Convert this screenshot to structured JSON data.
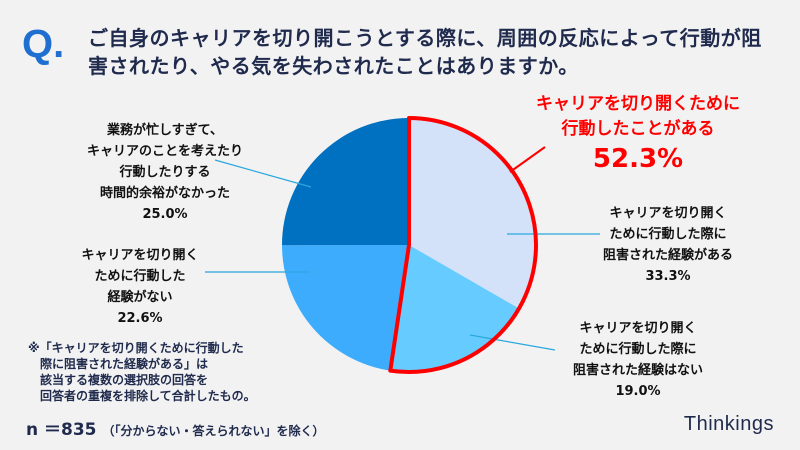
{
  "header": {
    "q_mark": "Q.",
    "question": "ご自身のキャリアを切り開こうとする際に、周囲の反応によって行動が阻害されたり、やる気を失わされたことはありますか。"
  },
  "chart_data": {
    "type": "pie",
    "start": "top",
    "direction": "clockwise",
    "slices": [
      {
        "label": "キャリアを切り開く\nために行動した際に\n阻害された経験がある",
        "value": 33.3,
        "value_label": "33.3%",
        "color": "#d3e2f8"
      },
      {
        "label": "キャリアを切り開く\nために行動した際に\n阻害された経験はない",
        "value": 19.0,
        "value_label": "19.0%",
        "color": "#66ccff"
      },
      {
        "label": "キャリアを切り開く\nために行動した\n経験がない",
        "value": 22.6,
        "value_label": "22.6%",
        "color": "#3eacfc"
      },
      {
        "label": "業務が忙しすぎて、\nキャリアのことを考えたり\n行動したりする\n時間的余裕がなかった",
        "value": 25.0,
        "value_label": "25.0%",
        "color": "#0070c0"
      }
    ],
    "highlight": {
      "label": "キャリアを切り開くために\n行動したことがある",
      "value": 52.3,
      "value_label": "52.3%",
      "slices": [
        0,
        1
      ],
      "color": "#ff0000"
    }
  },
  "footnote": "※「キャリアを切り開くために行動した\n　際に阻害された経験がある」は\n　該当する複数の選択肢の回答を\n　回答者の重複を排除して合計したもの。",
  "sample": {
    "n": "n ＝835",
    "note": "（「分からない・答えられない」を除く）"
  },
  "brand": "Thinkings"
}
